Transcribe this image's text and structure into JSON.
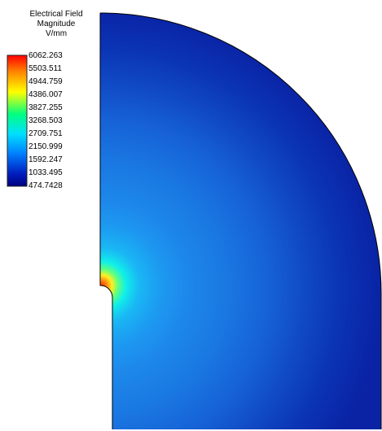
{
  "legend": {
    "title_line1": "Electrical Field",
    "title_line2": "Magnitude",
    "title_line3": "V/mm",
    "ticks": [
      "6062.263",
      "5503.511",
      "4944.759",
      "4386.007",
      "3827.255",
      "3268.503",
      "2709.751",
      "2150.999",
      "1592.247",
      "1033.495",
      "474.7428"
    ],
    "colormap": [
      "#ff0000",
      "#ff8000",
      "#ffff00",
      "#00ff80",
      "#00e0ff",
      "#0080ff",
      "#0020c0",
      "#000080"
    ]
  },
  "field": {
    "min": 474.7428,
    "max": 6062.263,
    "hotspot_value": 6062.263,
    "far_field_value": 474.7428
  }
}
